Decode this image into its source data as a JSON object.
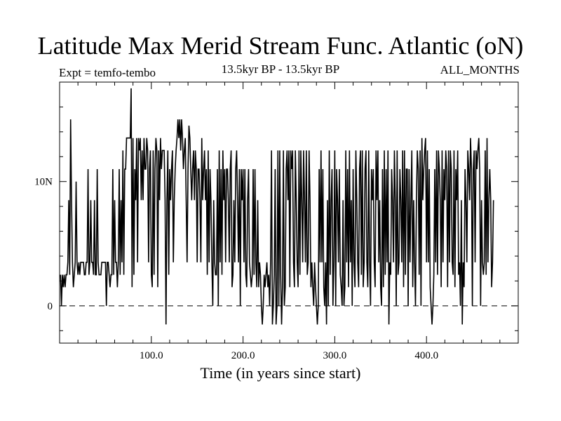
{
  "title": "Latitude Max Merid Stream Func. Atlantic (oN)",
  "subtitle_left": "Expt = temfo-tembo",
  "subtitle_center": "13.5kyr BP - 13.5kyr BP",
  "subtitle_right": "ALL_MONTHS",
  "chart_data": {
    "type": "line",
    "title": "Latitude Max Merid Stream Func. Atlantic (oN)",
    "xlabel": "Time (in years since start)",
    "ylabel": "",
    "xlim": [
      0,
      500
    ],
    "ylim": [
      -3,
      18
    ],
    "x_ticks": [
      {
        "value": 100,
        "label": "100.0"
      },
      {
        "value": 200,
        "label": "200.0"
      },
      {
        "value": 300,
        "label": "300.0"
      },
      {
        "value": 400,
        "label": "400.0"
      }
    ],
    "y_ticks": [
      {
        "value": 0,
        "label": "0"
      },
      {
        "value": 10,
        "label": "10N"
      }
    ],
    "zero_line": "dashed",
    "grid": false,
    "line_color": "#000000",
    "series": [
      {
        "x_start": 1,
        "x_step": 1,
        "values": [
          2.5,
          0,
          2.5,
          1.5,
          2.5,
          1.5,
          2.5,
          2.5,
          3.5,
          8.5,
          2.5,
          15,
          8.5,
          3.5,
          1.5,
          2.5,
          3.5,
          10,
          3.5,
          2.5,
          3.5,
          2.5,
          3.5,
          3.5,
          3.5,
          3.5,
          2.5,
          2.5,
          3.5,
          3.5,
          11,
          2.5,
          3.5,
          8.5,
          3.5,
          3.5,
          2.5,
          8.5,
          2.5,
          2.5,
          11,
          3.5,
          2.5,
          2.5,
          2.5,
          3.5,
          3.5,
          3.5,
          3.5,
          3.5,
          0,
          3.5,
          3.5,
          2.5,
          1.5,
          2.5,
          2.5,
          11,
          2.5,
          8.5,
          3.5,
          3.5,
          1.5,
          3.5,
          11,
          2.5,
          8.5,
          3.5,
          12.5,
          2.5,
          11,
          11,
          13.5,
          13.5,
          13.5,
          13.5,
          13.5,
          17.5,
          1.5,
          13.5,
          2.5,
          11,
          8.5,
          13.5,
          3.5,
          13.5,
          12.5,
          13.5,
          8.5,
          12.5,
          8.5,
          13.5,
          11,
          11,
          13.5,
          12.5,
          3.5,
          11,
          12.5,
          2.5,
          1.5,
          12.5,
          2.5,
          11,
          13.5,
          12.5,
          1.5,
          12.5,
          8.5,
          13.5,
          11,
          12.5,
          12.5,
          12.5,
          8.5,
          -1.5,
          8.5,
          12.5,
          2.5,
          11,
          8.5,
          11,
          12.5,
          3.5,
          8.5,
          11,
          12.5,
          13.5,
          15,
          13.5,
          15,
          12.5,
          15,
          13.5,
          11,
          12.5,
          13.5,
          8.5,
          3.5,
          11,
          14.5,
          13.5,
          11,
          8.5,
          11,
          12.5,
          8.5,
          12.5,
          11,
          3.5,
          11,
          11,
          8.5,
          3.5,
          13.5,
          8.5,
          11,
          12.5,
          8.5,
          11,
          2.5,
          12.5,
          3.5,
          11,
          8.5,
          3.5,
          0,
          8.5,
          3.5,
          2.5,
          2.5,
          11,
          0,
          12.5,
          3.5,
          11,
          2.5,
          12.5,
          8.5,
          11,
          3.5,
          11,
          11,
          8.5,
          3.5,
          11,
          12.5,
          1.5,
          2.5,
          8.5,
          3.5,
          11,
          12.5,
          8.5,
          3.5,
          11,
          0,
          11,
          8.5,
          11,
          3.5,
          11,
          2.5,
          1.5,
          8.5,
          11,
          3.5,
          2.5,
          1.5,
          2.5,
          11,
          2.5,
          11,
          3.5,
          1.5,
          8.5,
          1.5,
          3.5,
          2.5,
          0,
          -1.5,
          0,
          2.5,
          1.5,
          2.5,
          3.5,
          1.5,
          2.5,
          0,
          3.5,
          12.5,
          -1.5,
          0,
          2.5,
          11,
          -1.5,
          0,
          12.5,
          0,
          12.5,
          2.5,
          -1.5,
          1.5,
          12.5,
          0,
          1.5,
          11,
          12.5,
          8.5,
          12.5,
          1.5,
          12.5,
          11,
          12.5,
          3.5,
          1.5,
          12.5,
          8.5,
          3.5,
          1.5,
          12.5,
          2.5,
          12.5,
          8.5,
          3.5,
          12.5,
          8.5,
          3.5,
          12.5,
          2.5,
          3.5,
          12.5,
          8.5,
          1.5,
          3.5,
          1.5,
          0,
          3.5,
          1.5,
          0,
          -1.5,
          0,
          11,
          3.5,
          12.5,
          3.5,
          11,
          1.5,
          0,
          3.5,
          -1.5,
          8.5,
          0,
          12.5,
          2.5,
          8.5,
          11,
          0,
          3.5,
          12.5,
          0,
          11,
          8.5,
          3.5,
          11,
          2.5,
          1.5,
          0,
          8.5,
          0,
          1.5,
          12.5,
          3.5,
          11,
          1.5,
          12.5,
          3.5,
          8.5,
          0,
          11,
          3.5,
          1.5,
          12.5,
          8.5,
          3.5,
          1.5,
          11,
          12.5,
          2.5,
          12.5,
          1.5,
          3.5,
          11,
          12.5,
          3.5,
          1.5,
          12.5,
          3.5,
          0,
          11,
          8.5,
          11,
          3.5,
          1.5,
          12.5,
          8.5,
          12.5,
          3.5,
          8.5,
          1.5,
          0,
          11,
          1.5,
          12.5,
          2.5,
          11,
          3.5,
          12.5,
          -1.5,
          3.5,
          2.5,
          11,
          8.5,
          3.5,
          12.5,
          8.5,
          0,
          12.5,
          2.5,
          3.5,
          11,
          8.5,
          3.5,
          12.5,
          1.5,
          12.5,
          2.5,
          11,
          11,
          0,
          11,
          3.5,
          8.5,
          12.5,
          1.5,
          8.5,
          3.5,
          0,
          8.5,
          12.5,
          11,
          2.5,
          12.5,
          0,
          13.5,
          8.5,
          11,
          12.5,
          13.5,
          3.5,
          12.5,
          3.5,
          11,
          1.5,
          0,
          -1.5,
          0,
          2.5,
          11,
          3.5,
          12.5,
          2.5,
          12.5,
          11,
          8.5,
          1.5,
          12.5,
          3.5,
          11,
          8.5,
          12.5,
          11,
          1.5,
          12.5,
          3.5,
          12.5,
          11,
          3.5,
          2.5,
          12.5,
          1.5,
          11,
          8.5,
          12.5,
          2.5,
          3.5,
          0,
          8.5,
          -1.5,
          3.5,
          1.5,
          11,
          8.5,
          3.5,
          12.5,
          11,
          8.5,
          13.5,
          11,
          0,
          11,
          12.5,
          3.5,
          12.5,
          11,
          12.5,
          13.5,
          11,
          0,
          8.5,
          3.5,
          2.5,
          3.5,
          12.5,
          2.5,
          13.5,
          3.5,
          8.5,
          11,
          8.5,
          1.5,
          3.5,
          8.5
        ]
      }
    ]
  }
}
